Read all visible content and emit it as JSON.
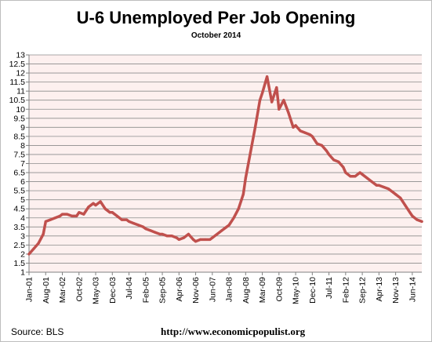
{
  "header": {
    "title": "U-6 Unemployed Per Job Opening",
    "subtitle": "October 2014"
  },
  "footer": {
    "source": "Source:  BLS",
    "url": "http://www.economicpopulist.org"
  },
  "colors": {
    "line": "#c0504d",
    "plot_background": "#fdf0ef",
    "grid": "#8c8c8c"
  },
  "chart_data": {
    "type": "line",
    "title": "U-6 Unemployed Per Job Opening",
    "subtitle": "October 2014",
    "xlabel": "",
    "ylabel": "",
    "ylim": [
      1,
      13
    ],
    "yticks": [
      "1",
      "1.5",
      "2",
      "2.5",
      "3",
      "3.5",
      "4",
      "4.5",
      "5",
      "5.5",
      "6",
      "6.5",
      "7",
      "7.5",
      "8",
      "8.5",
      "9",
      "9.5",
      "10",
      "10.5",
      "11",
      "11.5",
      "12",
      "12.5",
      "13"
    ],
    "xticks": [
      "Jan-01",
      "Aug-01",
      "Mar-02",
      "Oct-02",
      "May-03",
      "Dec-03",
      "Jul-04",
      "Feb-05",
      "Sep-05",
      "Apr-06",
      "Nov-06",
      "Jun-07",
      "Jan-08",
      "Aug-08",
      "Mar-09",
      "Oct-09",
      "May-10",
      "Dec-10",
      "Jul-11",
      "Feb-12",
      "Sep-12",
      "Apr-13",
      "Nov-13",
      "Jun-14"
    ],
    "grid": true,
    "legend": "none",
    "series": [
      {
        "x": [
          "Jan-01",
          "Mar-01",
          "May-01",
          "Jul-01",
          "Aug-01",
          "Oct-01",
          "Dec-01",
          "Feb-02",
          "Mar-02",
          "May-02",
          "Jul-02",
          "Sep-02",
          "Oct-02",
          "Dec-02",
          "Feb-03",
          "Apr-03",
          "May-03",
          "Jul-03",
          "Sep-03",
          "Nov-03",
          "Dec-03",
          "Feb-04",
          "Apr-04",
          "Jun-04",
          "Jul-04",
          "Sep-04",
          "Nov-04",
          "Jan-05",
          "Feb-05",
          "Apr-05",
          "Jun-05",
          "Aug-05",
          "Sep-05",
          "Nov-05",
          "Jan-06",
          "Mar-06",
          "Apr-06",
          "Jun-06",
          "Aug-06",
          "Oct-06",
          "Nov-06",
          "Jan-07",
          "Mar-07",
          "May-07",
          "Jun-07",
          "Aug-07",
          "Oct-07",
          "Dec-07",
          "Jan-08",
          "Mar-08",
          "May-08",
          "Jul-08",
          "Aug-08",
          "Oct-08",
          "Dec-08",
          "Feb-09",
          "Mar-09",
          "May-09",
          "Jul-09",
          "Sep-09",
          "Oct-09",
          "Dec-09",
          "Feb-10",
          "Apr-10",
          "May-10",
          "Jul-10",
          "Sep-10",
          "Nov-10",
          "Dec-10",
          "Feb-11",
          "Apr-11",
          "Jun-11",
          "Jul-11",
          "Sep-11",
          "Nov-11",
          "Jan-12",
          "Feb-12",
          "Apr-12",
          "Jun-12",
          "Aug-12",
          "Sep-12",
          "Nov-12",
          "Jan-13",
          "Mar-13",
          "Apr-13",
          "Jun-13",
          "Aug-13",
          "Oct-13",
          "Nov-13",
          "Jan-14",
          "Mar-14",
          "May-14",
          "Jun-14",
          "Aug-14",
          "Oct-14"
        ],
        "values": [
          2.0,
          2.3,
          2.6,
          3.1,
          3.8,
          3.9,
          4.0,
          4.1,
          4.2,
          4.2,
          4.1,
          4.1,
          4.3,
          4.2,
          4.6,
          4.8,
          4.7,
          4.9,
          4.5,
          4.3,
          4.3,
          4.1,
          3.9,
          3.9,
          3.8,
          3.7,
          3.6,
          3.5,
          3.4,
          3.3,
          3.2,
          3.1,
          3.1,
          3.0,
          3.0,
          2.9,
          2.8,
          2.9,
          3.1,
          2.8,
          2.7,
          2.8,
          2.8,
          2.8,
          2.9,
          3.1,
          3.3,
          3.5,
          3.6,
          4.0,
          4.5,
          5.3,
          6.2,
          7.6,
          9.0,
          10.5,
          10.9,
          11.8,
          10.4,
          11.2,
          10.0,
          10.5,
          9.8,
          9.0,
          9.1,
          8.8,
          8.7,
          8.6,
          8.5,
          8.1,
          8.0,
          7.7,
          7.5,
          7.2,
          7.1,
          6.8,
          6.5,
          6.3,
          6.3,
          6.5,
          6.4,
          6.2,
          6.0,
          5.8,
          5.8,
          5.7,
          5.6,
          5.4,
          5.3,
          5.1,
          4.7,
          4.3,
          4.1,
          3.9,
          3.8
        ]
      }
    ]
  }
}
